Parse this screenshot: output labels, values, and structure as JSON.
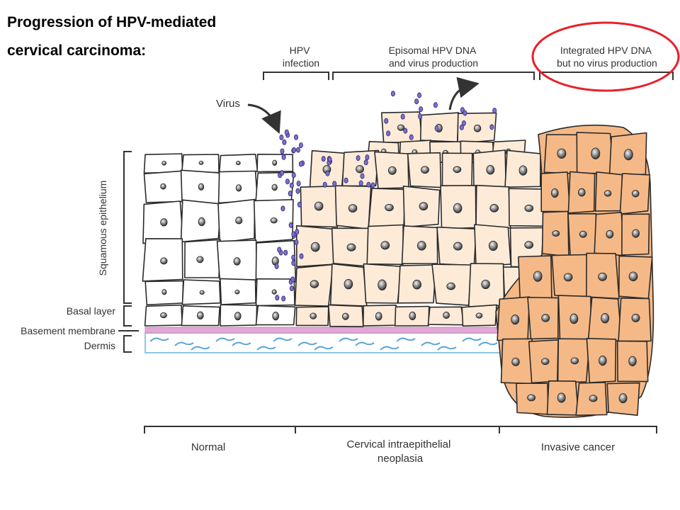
{
  "title": {
    "line1": "Progression of HPV-mediated",
    "line2": "cervical carcinoma:"
  },
  "top_labels": {
    "hpv_infection": [
      "HPV",
      "infection"
    ],
    "episomal": [
      "Episomal HPV DNA",
      "and virus production"
    ],
    "integrated": [
      "Integrated HPV DNA",
      "but no virus production"
    ]
  },
  "virus_label": "Virus",
  "left_labels": {
    "squamous": "Squamous epithelium",
    "basal": "Basal layer",
    "basement": "Basement membrane",
    "dermis": "Dermis"
  },
  "bottom_labels": {
    "normal": "Normal",
    "cin": [
      "Cervical intraepithelial",
      "neoplasia"
    ],
    "invasive": "Invasive cancer"
  },
  "colors": {
    "normal_fill": "#ffffff",
    "cin_fill": "#fdebd8",
    "cancer_fill": "#f5b987",
    "cell_stroke": "#2a2a2a",
    "membrane": "#e3a8d6",
    "dermis_border": "#8fc6e6",
    "dermis_wave": "#5ea6d4",
    "virus": "#7b6fd0",
    "highlight": "#e8202a"
  }
}
